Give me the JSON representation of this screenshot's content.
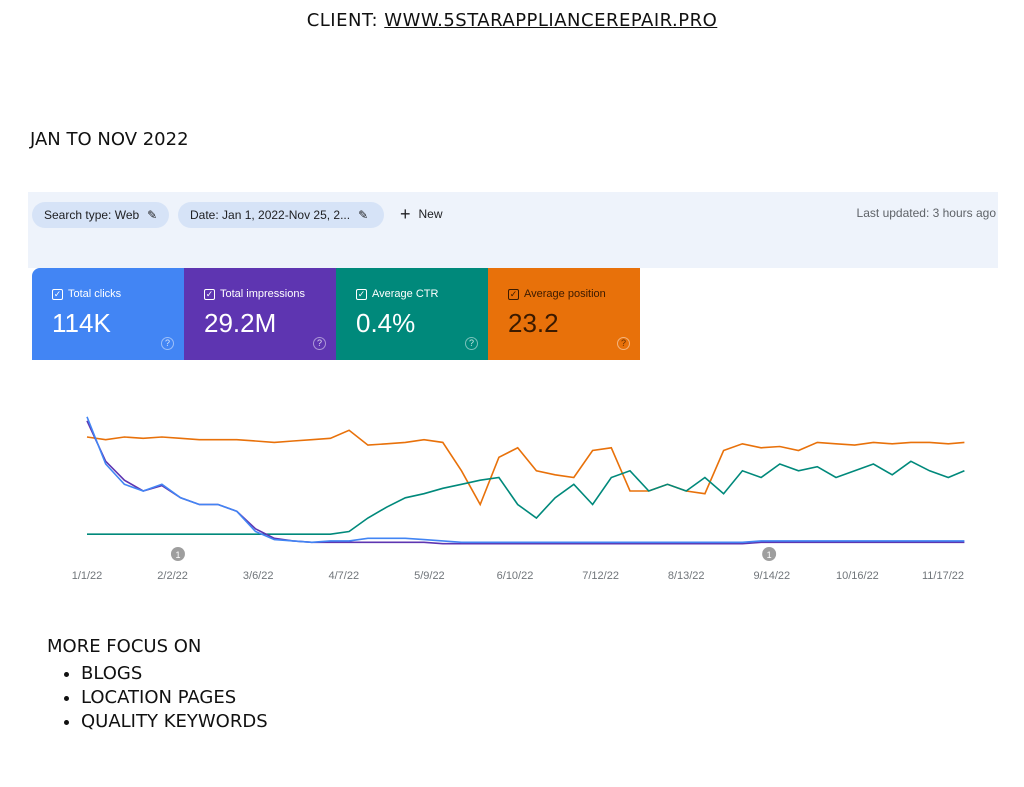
{
  "header": {
    "client_label": "CLIENT:",
    "client_site": "WWW.5STARAPPLIANCEREPAIR.PRO",
    "period": "JAN TO NOV 2022"
  },
  "toolbar": {
    "search_type": "Search type: Web",
    "date": "Date: Jan 1, 2022-Nov 25, 2...",
    "new_label": "New",
    "last_updated": "Last updated: 3 hours ago"
  },
  "cards": [
    {
      "label": "Total clicks",
      "value": "114K",
      "color": "#4285f4"
    },
    {
      "label": "Total impressions",
      "value": "29.2M",
      "color": "#5e35b1"
    },
    {
      "label": "Average CTR",
      "value": "0.4%",
      "color": "#00897b"
    },
    {
      "label": "Average position",
      "value": "23.2",
      "color": "#e8710a"
    }
  ],
  "notes": {
    "title": "MORE FOCUS ON",
    "items": [
      "BLOGS",
      "LOCATION PAGES",
      "QUALITY KEYWORDS"
    ]
  },
  "chart_data": {
    "type": "line",
    "x_ticks": [
      "1/1/22",
      "2/2/22",
      "3/6/22",
      "4/7/22",
      "5/9/22",
      "6/10/22",
      "7/12/22",
      "8/13/22",
      "9/14/22",
      "10/16/22",
      "11/17/22"
    ],
    "x_range": [
      "1/1/22",
      "11/25/22"
    ],
    "y_axis": "hidden, relative scale 0-100 per series",
    "grid": false,
    "annotations": [
      {
        "date": "2/4/22",
        "label": "1"
      },
      {
        "date": "9/13/22",
        "label": "1"
      }
    ],
    "x": [
      "1/1/22",
      "1/8/22",
      "1/15/22",
      "1/22/22",
      "1/29/22",
      "2/5/22",
      "2/12/22",
      "2/19/22",
      "2/26/22",
      "3/5/22",
      "3/12/22",
      "3/19/22",
      "3/26/22",
      "4/2/22",
      "4/9/22",
      "4/16/22",
      "4/23/22",
      "4/30/22",
      "5/7/22",
      "5/14/22",
      "5/21/22",
      "5/28/22",
      "6/4/22",
      "6/11/22",
      "6/18/22",
      "6/25/22",
      "7/2/22",
      "7/9/22",
      "7/16/22",
      "7/23/22",
      "7/30/22",
      "8/6/22",
      "8/13/22",
      "8/20/22",
      "8/27/22",
      "9/3/22",
      "9/10/22",
      "9/17/22",
      "9/24/22",
      "10/1/22",
      "10/8/22",
      "10/15/22",
      "10/22/22",
      "10/29/22",
      "11/5/22",
      "11/12/22",
      "11/19/22",
      "11/25/22"
    ],
    "series": [
      {
        "metric": "clicks",
        "color": "#4285f4",
        "values": [
          95,
          60,
          45,
          40,
          45,
          35,
          30,
          30,
          25,
          10,
          4,
          3,
          2,
          3,
          3,
          5,
          5,
          5,
          4,
          3,
          2,
          2,
          2,
          2,
          2,
          2,
          2,
          2,
          2,
          2,
          2,
          2,
          2,
          2,
          2,
          2,
          3,
          3,
          3,
          3,
          3,
          3,
          3,
          3,
          3,
          3,
          3,
          3
        ]
      },
      {
        "metric": "impressions",
        "color": "#5e35b1",
        "values": [
          92,
          62,
          48,
          40,
          44,
          35,
          30,
          30,
          25,
          12,
          5,
          3,
          2,
          2,
          2,
          2,
          2,
          2,
          2,
          1,
          1,
          1,
          1,
          1,
          1,
          1,
          1,
          1,
          1,
          1,
          1,
          1,
          1,
          1,
          1,
          1,
          2,
          2,
          2,
          2,
          2,
          2,
          2,
          2,
          2,
          2,
          2,
          2
        ]
      },
      {
        "metric": "ctr",
        "color": "#00897b",
        "values": [
          8,
          8,
          8,
          8,
          8,
          8,
          8,
          8,
          8,
          8,
          8,
          8,
          8,
          8,
          10,
          20,
          28,
          35,
          38,
          42,
          45,
          48,
          50,
          30,
          20,
          35,
          45,
          30,
          50,
          55,
          40,
          45,
          40,
          50,
          38,
          55,
          50,
          60,
          55,
          58,
          50,
          55,
          60,
          52,
          62,
          55,
          50,
          55
        ]
      },
      {
        "metric": "position",
        "color": "#e8710a",
        "values": [
          80,
          78,
          80,
          79,
          80,
          79,
          78,
          78,
          78,
          77,
          76,
          77,
          78,
          79,
          85,
          74,
          75,
          76,
          78,
          76,
          55,
          30,
          65,
          72,
          55,
          52,
          50,
          70,
          72,
          40,
          40,
          45,
          40,
          38,
          70,
          75,
          72,
          73,
          70,
          76,
          75,
          74,
          76,
          75,
          76,
          76,
          75,
          76
        ]
      }
    ]
  }
}
